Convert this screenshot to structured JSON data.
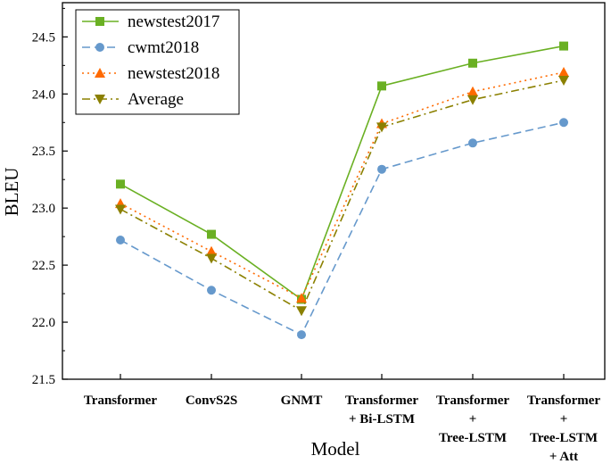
{
  "chart_data": {
    "type": "line",
    "title": "",
    "xlabel": "Model",
    "ylabel": "BLEU",
    "ylim": [
      21.5,
      24.8
    ],
    "yticks": [
      "21.5",
      "22.0",
      "22.5",
      "23.0",
      "23.5",
      "24.0",
      "24.5"
    ],
    "categories": [
      [
        "Transformer"
      ],
      [
        "ConvS2S"
      ],
      [
        "GNMT"
      ],
      [
        "Transformer",
        "+ Bi-LSTM"
      ],
      [
        "Transformer",
        "+",
        "Tree-LSTM"
      ],
      [
        "Transformer",
        "+",
        "Tree-LSTM",
        "+ Att"
      ]
    ],
    "legend_position": "top-left",
    "series": [
      {
        "name": "newstest2017",
        "values": [
          23.21,
          22.77,
          22.2,
          24.07,
          24.27,
          24.42
        ],
        "color": "#6ab023",
        "marker": "square",
        "dash": "solid"
      },
      {
        "name": "cwmt2018",
        "values": [
          22.72,
          22.28,
          21.89,
          23.34,
          23.57,
          23.75
        ],
        "color": "#6699cc",
        "marker": "circle",
        "dash": "dashed"
      },
      {
        "name": "newstest2018",
        "values": [
          23.04,
          22.62,
          22.21,
          23.74,
          24.02,
          24.19
        ],
        "color": "#ff6a00",
        "marker": "triangle-up",
        "dash": "dotted"
      },
      {
        "name": "Average",
        "values": [
          22.99,
          22.56,
          22.1,
          23.71,
          23.95,
          24.12
        ],
        "color": "#8b8000",
        "marker": "triangle-down",
        "dash": "dashdot"
      }
    ]
  }
}
